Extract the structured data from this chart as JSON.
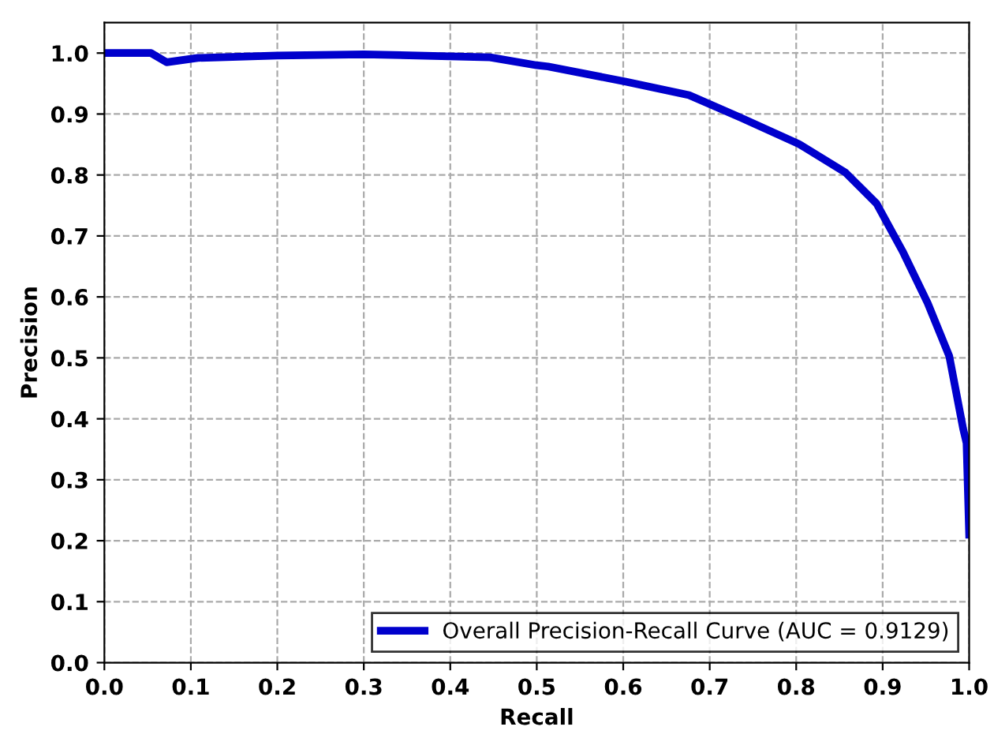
{
  "chart_data": {
    "type": "line",
    "xlabel": "Recall",
    "ylabel": "Precision",
    "series": [
      {
        "name": "Overall Precision-Recall Curve (AUC = 0.9129)",
        "color": "#0000cc",
        "x": [
          0.0,
          0.054,
          0.072,
          0.108,
          0.2,
          0.3,
          0.446,
          0.5,
          0.513,
          0.603,
          0.676,
          0.736,
          0.803,
          0.857,
          0.893,
          0.923,
          0.952,
          0.977,
          0.993,
          0.997,
          1.0
        ],
        "values": [
          1.0,
          1.0,
          0.985,
          0.992,
          0.996,
          0.998,
          0.993,
          0.98,
          0.978,
          0.953,
          0.931,
          0.894,
          0.851,
          0.804,
          0.753,
          0.675,
          0.59,
          0.503,
          0.384,
          0.36,
          0.21
        ]
      }
    ],
    "xlim": [
      0,
      1
    ],
    "ylim": [
      0,
      1.05
    ],
    "xticks": [
      {
        "value": 0,
        "label": "0.0"
      },
      0.1,
      0.2,
      0.3,
      0.4,
      0.5,
      0.6,
      0.7,
      0.8,
      0.9,
      {
        "value": 1,
        "label": "1.0"
      }
    ],
    "yticks": [
      {
        "value": 0,
        "label": "0.0"
      },
      0.1,
      0.2,
      0.3,
      0.4,
      0.5,
      0.6,
      0.7,
      0.8,
      0.9,
      {
        "value": 1,
        "label": "1.0"
      }
    ],
    "grid": true,
    "legend": "bottom right",
    "line_style": "solid",
    "marker": "none"
  }
}
